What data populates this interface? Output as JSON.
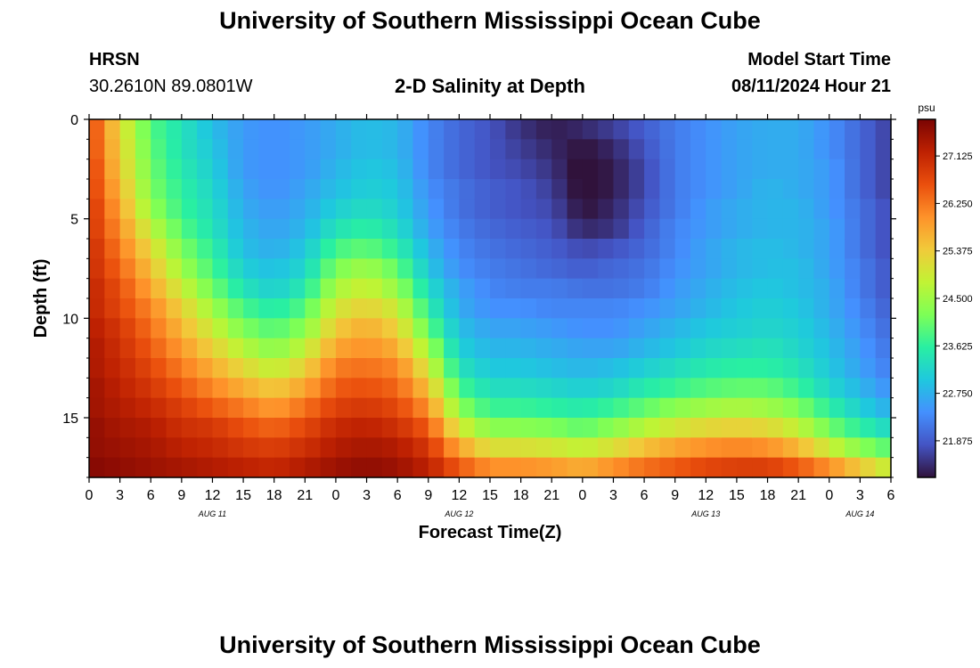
{
  "header": {
    "title": "University of Southern Mississippi Ocean Cube",
    "station": "HRSN",
    "coords": "30.2610N  89.0801W",
    "subtitle": "2-D Salinity at Depth",
    "model_label": "Model Start Time",
    "model_time": "08/11/2024 Hour 21"
  },
  "footer": {
    "title": "University of Southern Mississippi Ocean Cube"
  },
  "colors": {
    "colormap": [
      "#30123b",
      "#4454c4",
      "#4490fe",
      "#1fc8de",
      "#29efa2",
      "#7dff56",
      "#c1f334",
      "#f1ca3a",
      "#fe922a",
      "#ea4f0d",
      "#be2102",
      "#7a0403"
    ]
  },
  "chart_data": {
    "type": "heatmap",
    "title": "2-D Salinity at Depth",
    "xlabel": "Forecast Time(Z)",
    "ylabel": "Depth (ft)",
    "x_tick_labels": [
      "0",
      "3",
      "6",
      "9",
      "12",
      "15",
      "18",
      "21",
      "0",
      "3",
      "6",
      "9",
      "12",
      "15",
      "18",
      "21",
      "0",
      "3",
      "6",
      "9",
      "12",
      "15",
      "18",
      "21",
      "0",
      "3",
      "6"
    ],
    "day_labels": [
      {
        "label": "AUG 11",
        "hour": 12
      },
      {
        "label": "AUG 12",
        "hour": 36
      },
      {
        "label": "AUG 13",
        "hour": 60
      },
      {
        "label": "AUG 14",
        "hour": 75
      }
    ],
    "x_range_hours": [
      0,
      78
    ],
    "y_ticks": [
      0,
      5,
      10,
      15
    ],
    "ylim": [
      0,
      18
    ],
    "colorbar": {
      "unit": "psu",
      "range": [
        21.2,
        27.8
      ],
      "ticks": [
        27.125,
        26.25,
        25.375,
        24.5,
        23.625,
        22.75,
        21.875
      ],
      "tick_labels": [
        "27.125",
        "26.250",
        "25.375",
        "24.500",
        "23.625",
        "22.750",
        "21.875"
      ]
    },
    "depths_ft": [
      0.5,
      1.5,
      2.5,
      3.5,
      4.5,
      5.5,
      6.5,
      7.5,
      8.5,
      9.5,
      10.5,
      11.5,
      12.5,
      13.5,
      14.5,
      15.5,
      16.5,
      17.5
    ],
    "profile_hours": [
      0,
      3,
      6,
      9,
      12,
      15,
      18,
      21,
      24,
      27,
      30,
      33,
      36,
      39,
      42,
      45,
      48,
      51,
      54,
      57,
      60,
      63,
      66,
      69,
      72,
      75,
      78
    ],
    "profiles": [
      [
        26.8,
        26.8,
        26.9,
        26.9,
        27.0,
        27.0,
        27.1,
        27.1,
        27.2,
        27.2,
        27.3,
        27.4,
        27.4,
        27.5,
        27.5,
        27.6,
        27.6,
        27.7
      ],
      [
        25.2,
        25.3,
        25.4,
        25.6,
        25.8,
        26.0,
        26.2,
        26.4,
        26.6,
        26.7,
        26.9,
        27.0,
        27.1,
        27.2,
        27.3,
        27.4,
        27.5,
        27.6
      ],
      [
        23.9,
        24.0,
        24.1,
        24.2,
        24.4,
        24.8,
        25.2,
        25.5,
        25.8,
        26.1,
        26.3,
        26.5,
        26.7,
        26.9,
        27.1,
        27.3,
        27.4,
        27.5
      ],
      [
        23.4,
        23.4,
        23.5,
        23.6,
        23.7,
        23.9,
        24.2,
        24.5,
        24.9,
        25.3,
        25.6,
        25.9,
        26.2,
        26.5,
        26.8,
        27.0,
        27.2,
        27.4
      ],
      [
        22.9,
        23.0,
        23.1,
        23.2,
        23.3,
        23.4,
        23.6,
        23.8,
        24.1,
        24.5,
        24.9,
        25.3,
        25.7,
        26.1,
        26.5,
        26.9,
        27.1,
        27.3
      ],
      [
        22.5,
        22.5,
        22.5,
        22.6,
        22.7,
        22.8,
        22.9,
        23.1,
        23.4,
        23.8,
        24.2,
        24.7,
        25.2,
        25.7,
        26.2,
        26.6,
        26.9,
        27.2
      ],
      [
        22.4,
        22.4,
        22.4,
        22.4,
        22.5,
        22.6,
        22.7,
        22.9,
        23.1,
        23.5,
        23.9,
        24.3,
        24.8,
        25.4,
        25.9,
        26.4,
        26.8,
        27.1
      ],
      [
        22.5,
        22.5,
        22.5,
        22.6,
        22.7,
        22.8,
        23.0,
        23.2,
        23.5,
        23.9,
        24.3,
        24.8,
        25.3,
        25.8,
        26.3,
        26.7,
        27.0,
        27.3
      ],
      [
        22.7,
        22.7,
        22.8,
        22.9,
        23.1,
        23.4,
        23.8,
        24.2,
        24.6,
        25.0,
        25.4,
        25.8,
        26.2,
        26.5,
        26.8,
        27.1,
        27.3,
        27.5
      ],
      [
        22.9,
        22.9,
        23.0,
        23.1,
        23.3,
        23.6,
        24.0,
        24.5,
        24.9,
        25.3,
        25.7,
        26.0,
        26.3,
        26.6,
        26.9,
        27.2,
        27.4,
        27.6
      ],
      [
        22.8,
        22.8,
        22.9,
        23.0,
        23.1,
        23.3,
        23.6,
        24.0,
        24.4,
        24.9,
        25.3,
        25.7,
        26.1,
        26.4,
        26.7,
        27.0,
        27.3,
        27.5
      ],
      [
        22.3,
        22.3,
        22.3,
        22.4,
        22.5,
        22.6,
        22.8,
        23.0,
        23.3,
        23.6,
        24.0,
        24.5,
        25.0,
        25.5,
        26.0,
        26.5,
        26.9,
        27.2
      ],
      [
        22.0,
        22.0,
        22.0,
        22.1,
        22.1,
        22.2,
        22.3,
        22.4,
        22.6,
        22.7,
        22.9,
        23.1,
        23.4,
        23.8,
        24.3,
        25.0,
        25.8,
        26.5
      ],
      [
        21.8,
        21.8,
        21.8,
        21.9,
        21.9,
        22.0,
        22.1,
        22.2,
        22.3,
        22.4,
        22.6,
        22.8,
        23.0,
        23.3,
        23.7,
        24.3,
        25.1,
        26.0
      ],
      [
        21.5,
        21.6,
        21.7,
        21.8,
        21.8,
        21.9,
        22.0,
        22.1,
        22.2,
        22.4,
        22.6,
        22.8,
        23.0,
        23.3,
        23.7,
        24.3,
        25.1,
        26.0
      ],
      [
        21.3,
        21.4,
        21.5,
        21.6,
        21.7,
        21.8,
        21.9,
        22.0,
        22.2,
        22.3,
        22.5,
        22.7,
        22.9,
        23.2,
        23.6,
        24.2,
        25.0,
        25.9
      ],
      [
        21.4,
        21.2,
        21.1,
        21.1,
        21.2,
        21.4,
        21.7,
        21.9,
        22.1,
        22.3,
        22.4,
        22.6,
        22.8,
        23.1,
        23.5,
        24.0,
        24.8,
        25.7
      ],
      [
        21.6,
        21.4,
        21.3,
        21.3,
        21.4,
        21.5,
        21.8,
        22.0,
        22.1,
        22.3,
        22.4,
        22.6,
        22.9,
        23.2,
        23.7,
        24.3,
        25.1,
        26.0
      ],
      [
        21.9,
        21.8,
        21.7,
        21.7,
        21.8,
        21.9,
        22.0,
        22.1,
        22.2,
        22.4,
        22.6,
        22.8,
        23.1,
        23.5,
        24.0,
        24.7,
        25.5,
        26.3
      ],
      [
        22.2,
        22.2,
        22.2,
        22.2,
        22.2,
        22.3,
        22.3,
        22.4,
        22.5,
        22.6,
        22.8,
        23.0,
        23.3,
        23.7,
        24.3,
        25.0,
        25.8,
        26.5
      ],
      [
        22.4,
        22.4,
        22.4,
        22.4,
        22.5,
        22.5,
        22.6,
        22.6,
        22.7,
        22.8,
        23.0,
        23.2,
        23.5,
        23.9,
        24.5,
        25.2,
        26.0,
        26.7
      ],
      [
        22.6,
        22.6,
        22.6,
        22.6,
        22.7,
        22.7,
        22.8,
        22.8,
        22.9,
        23.0,
        23.1,
        23.3,
        23.6,
        24.0,
        24.6,
        25.3,
        26.1,
        26.8
      ],
      [
        22.7,
        22.7,
        22.7,
        22.8,
        22.8,
        22.8,
        22.9,
        22.9,
        23.0,
        23.1,
        23.2,
        23.4,
        23.6,
        24.0,
        24.5,
        25.2,
        26.0,
        26.8
      ],
      [
        22.7,
        22.7,
        22.7,
        22.7,
        22.8,
        22.8,
        22.8,
        22.9,
        22.9,
        23.0,
        23.1,
        23.2,
        23.4,
        23.7,
        24.2,
        24.8,
        25.6,
        26.5
      ],
      [
        22.4,
        22.4,
        22.5,
        22.5,
        22.5,
        22.6,
        22.6,
        22.6,
        22.7,
        22.7,
        22.8,
        22.9,
        23.0,
        23.2,
        23.6,
        24.1,
        24.9,
        26.0
      ],
      [
        22.0,
        22.0,
        22.0,
        22.0,
        22.1,
        22.1,
        22.1,
        22.2,
        22.2,
        22.3,
        22.4,
        22.5,
        22.6,
        22.8,
        23.1,
        23.6,
        24.3,
        25.4
      ],
      [
        21.6,
        21.6,
        21.6,
        21.6,
        21.7,
        21.7,
        21.7,
        21.8,
        21.8,
        21.9,
        22.0,
        22.1,
        22.2,
        22.4,
        22.7,
        23.2,
        23.9,
        24.8
      ]
    ]
  }
}
